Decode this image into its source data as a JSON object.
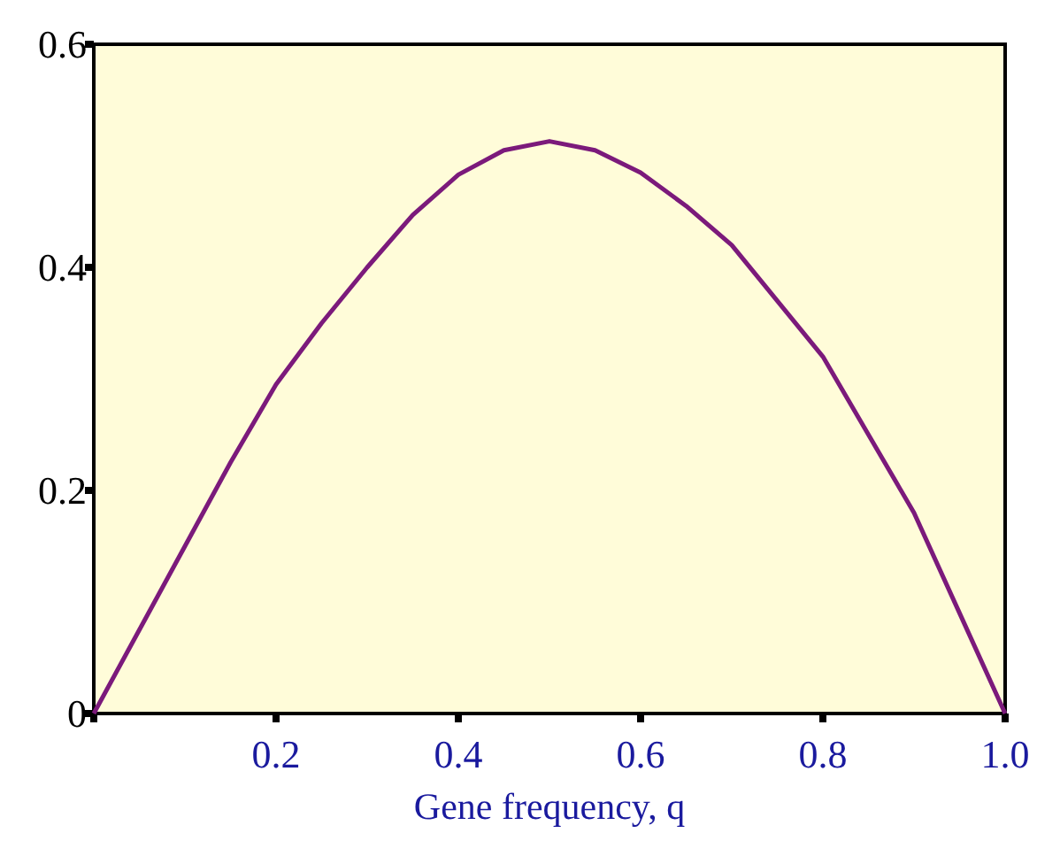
{
  "chart_data": {
    "type": "line",
    "xlabel": "Gene frequency, q",
    "xlim": [
      0,
      1
    ],
    "ylim": [
      0,
      0.6
    ],
    "xticks": [
      {
        "value": 0,
        "label": null
      },
      0.2,
      0.4,
      0.6,
      0.8,
      {
        "value": 1,
        "label": "1.0"
      }
    ],
    "yticks": [
      0,
      0.2,
      0.4,
      0.6
    ],
    "x": [
      0,
      0.05,
      0.1,
      0.15,
      0.2,
      0.25,
      0.3,
      0.35,
      0.4,
      0.45,
      0.5,
      0.55,
      0.6,
      0.65,
      0.7,
      0.75,
      0.8,
      0.85,
      0.9,
      0.95,
      1
    ],
    "series": [
      {
        "color": "#7b1a7b",
        "values": [
          0,
          0.075,
          0.15,
          0.225,
          0.295,
          0.35,
          0.4,
          0.447,
          0.483,
          0.505,
          0.513,
          0.505,
          0.485,
          0.455,
          0.42,
          0.37,
          0.32,
          0.25,
          0.18,
          0.09,
          0
        ]
      }
    ],
    "grid": false,
    "marker": "none",
    "line_style": "solid"
  }
}
